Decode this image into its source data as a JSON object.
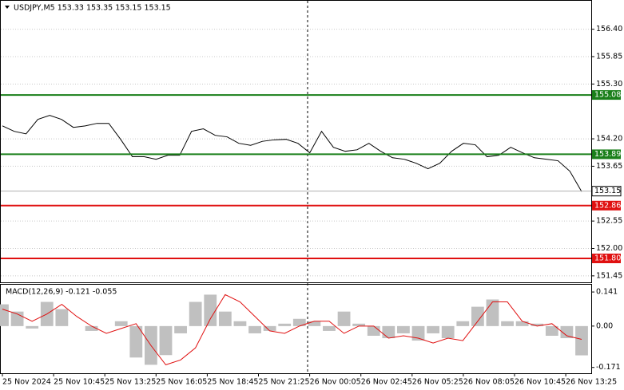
{
  "chart_data": [
    {
      "type": "line",
      "title": "USDJPY,M5  153.33 153.35 153.15 153.15",
      "color": "#000000",
      "values": [
        154.46,
        154.35,
        154.3,
        154.59,
        154.67,
        154.59,
        154.43,
        154.46,
        154.51,
        154.51,
        154.19,
        153.84,
        153.84,
        153.79,
        153.87,
        153.87,
        154.35,
        154.4,
        154.27,
        154.24,
        154.11,
        154.07,
        154.15,
        154.18,
        154.19,
        154.11,
        153.92,
        154.35,
        154.03,
        153.95,
        153.98,
        154.11,
        153.95,
        153.82,
        153.79,
        153.71,
        153.6,
        153.71,
        153.95,
        154.11,
        154.08,
        153.84,
        153.87,
        154.03,
        153.92,
        153.82,
        153.79,
        153.76,
        153.55,
        153.14
      ],
      "ylim": [
        151.32,
        156.97
      ],
      "yticks": [
        {
          "value": 156.4,
          "label": "156.40"
        },
        {
          "value": 155.85,
          "label": "155.85"
        },
        {
          "value": 155.3,
          "label": "155.30"
        },
        {
          "value": 154.2,
          "label": "154.20"
        },
        {
          "value": 153.65,
          "label": "153.65"
        },
        {
          "value": 152.55,
          "label": "152.55"
        },
        {
          "value": 152,
          "label": "152.00"
        },
        {
          "value": 151.45,
          "label": "151.45"
        }
      ],
      "grid": true,
      "levels": [
        {
          "value": 155.08,
          "label": "155.08",
          "color": "#1a7f1a"
        },
        {
          "value": 153.89,
          "label": "153.89",
          "color": "#1a7f1a"
        },
        {
          "value": 152.86,
          "label": "152.86",
          "color": "#e01010"
        },
        {
          "value": 151.8,
          "label": "151.80",
          "color": "#e01010"
        }
      ],
      "current": 153.15
    },
    {
      "type": "bar",
      "title": "MACD(12,26,9) -0.121 -0.055",
      "color": "#c0c0c0",
      "values": [
        0.09,
        0.06,
        -0.01,
        0.1,
        0.07,
        0.0,
        -0.02,
        0.0,
        0.02,
        -0.13,
        -0.16,
        -0.12,
        -0.03,
        0.1,
        0.13,
        0.06,
        0.02,
        -0.03,
        -0.02,
        0.01,
        0.03,
        0.02,
        -0.02,
        0.06,
        0.01,
        -0.04,
        -0.05,
        -0.03,
        -0.06,
        -0.03,
        -0.05,
        0.02,
        0.08,
        0.11,
        0.02,
        0.02,
        0.01,
        -0.04,
        -0.05,
        -0.121
      ],
      "signal": {
        "color": "#e01010",
        "values": [
          0.07,
          0.05,
          0.02,
          0.05,
          0.09,
          0.04,
          0.0,
          -0.03,
          -0.01,
          0.01,
          -0.08,
          -0.16,
          -0.14,
          -0.09,
          0.03,
          0.13,
          0.1,
          0.04,
          -0.02,
          -0.03,
          0.0,
          0.02,
          0.02,
          -0.03,
          0.0,
          0.0,
          -0.05,
          -0.04,
          -0.05,
          -0.07,
          -0.05,
          -0.06,
          0.02,
          0.1,
          0.1,
          0.02,
          0.0,
          0.01,
          -0.04,
          -0.055
        ]
      },
      "ylim": [
        -0.195,
        0.171
      ],
      "yticks": [
        0.141,
        {
          "value": 0,
          "label": "0.00"
        },
        -0.171
      ],
      "time_labels": [
        "25 Nov 2024",
        "25 Nov 10:45",
        "25 Nov 13:25",
        "25 Nov 16:05",
        "25 Nov 18:45",
        "25 Nov 21:25",
        "26 Nov 00:05",
        "26 Nov 02:45",
        "26 Nov 05:25",
        "26 Nov 08:05",
        "26 Nov 10:45",
        "26 Nov 13:25"
      ]
    }
  ]
}
